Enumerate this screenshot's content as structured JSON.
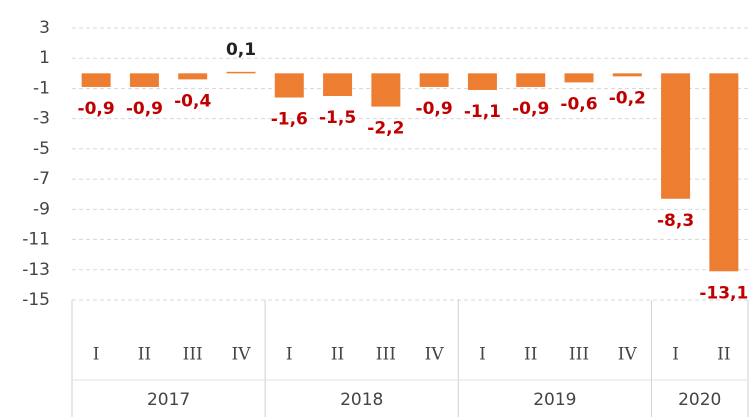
{
  "chart_data": {
    "type": "bar",
    "groups": [
      {
        "name": "2017",
        "categories": [
          "I",
          "II",
          "III",
          "IV"
        ]
      },
      {
        "name": "2018",
        "categories": [
          "I",
          "II",
          "III",
          "IV"
        ]
      },
      {
        "name": "2019",
        "categories": [
          "I",
          "II",
          "III",
          "IV"
        ]
      },
      {
        "name": "2020",
        "categories": [
          "I",
          "II"
        ]
      }
    ],
    "values": [
      -0.9,
      -0.9,
      -0.4,
      0.1,
      -1.6,
      -1.5,
      -2.2,
      -0.9,
      -1.1,
      -0.9,
      -0.6,
      -0.2,
      -8.3,
      -13.1
    ],
    "value_labels": [
      "-0,9",
      "-0,9",
      "-0,4",
      "0,1",
      "-1,6",
      "-1,5",
      "-2,2",
      "-0,9",
      "-1,1",
      "-0,9",
      "-0,6",
      "-0,2",
      "-8,3",
      "-13,1"
    ],
    "color": "#ed7d31",
    "label_colors": {
      "negative": "#c00000",
      "positive": "#222222"
    },
    "ylim": [
      -15,
      3
    ],
    "yticks": [
      3,
      1,
      -1,
      -3,
      -5,
      -7,
      -9,
      -11,
      -13,
      -15
    ],
    "grid": true
  }
}
